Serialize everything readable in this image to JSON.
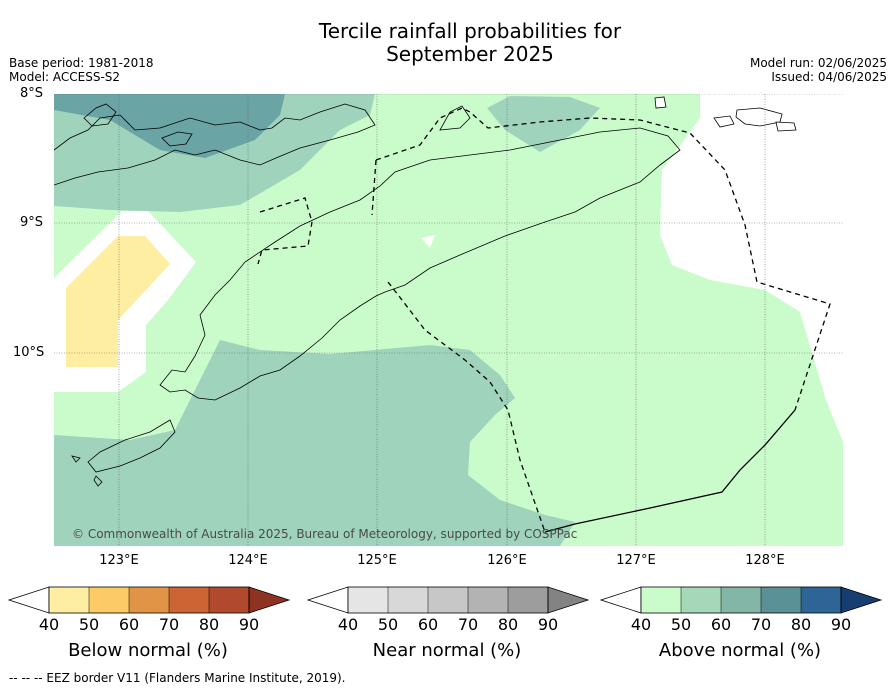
{
  "title_line1": "Tercile rainfall probabilities for",
  "title_line2": "September 2025",
  "base_period": "Base period: 1981-2018",
  "model": "Model: ACCESS-S2",
  "model_run": "Model run: 02/06/2025",
  "issued": "Issued: 04/06/2025",
  "lat_labels": [
    "8°S",
    "9°S",
    "10°S"
  ],
  "lon_labels": [
    "123°E",
    "124°E",
    "125°E",
    "126°E",
    "127°E",
    "128°E"
  ],
  "copyright": "© Commonwealth of Australia 2025, Bureau of Meteorology, supported by COSPPac",
  "legend": {
    "ticks": [
      "40",
      "50",
      "60",
      "70",
      "80",
      "90"
    ],
    "below": {
      "title": "Below normal (%)",
      "colors": [
        "#fdeea1",
        "#fccb66",
        "#e29446",
        "#cc6434",
        "#b14a2c",
        "#8e3322"
      ]
    },
    "near": {
      "title": "Near normal (%)",
      "colors": [
        "#e5e5e5",
        "#d8d8d8",
        "#c7c7c7",
        "#b3b3b3",
        "#9d9d9d",
        "#838383"
      ]
    },
    "above": {
      "title": "Above normal (%)",
      "colors": [
        "#cafccb",
        "#a4d8b8",
        "#83b6a7",
        "#5a9197",
        "#2e6597",
        "#163e70"
      ]
    }
  },
  "footer": "--  --  -- EEZ border V11 (Flanders Marine Institute, 2019)."
}
